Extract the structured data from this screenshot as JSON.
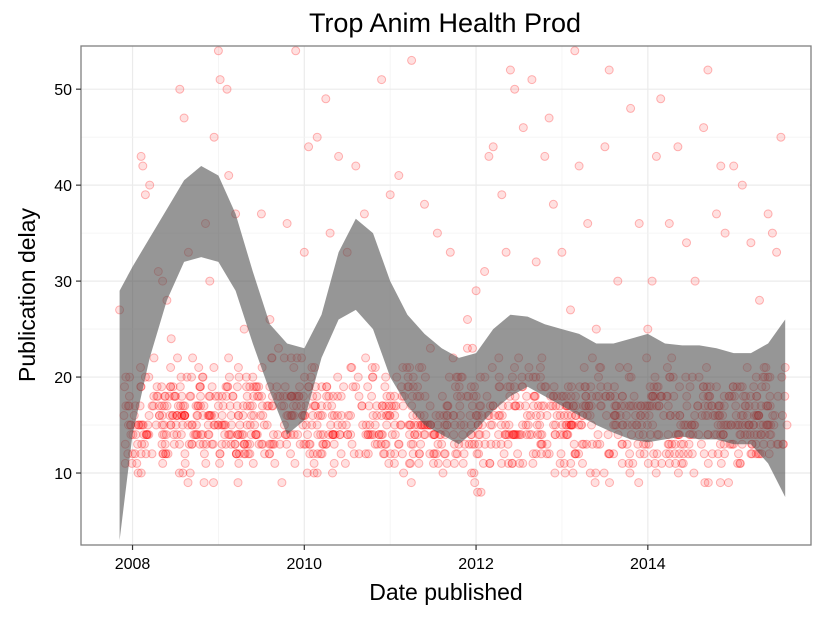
{
  "chart_data": {
    "type": "scatter",
    "title": "Trop Anim Health Prod",
    "xlabel": "Date published",
    "ylabel": "Publication delay",
    "xlim": [
      2007.4,
      2015.9
    ],
    "ylim": [
      2.5,
      54.5
    ],
    "x_ticks": [
      {
        "value": 2008,
        "label": "2008"
      },
      {
        "value": 2010,
        "label": "2010"
      },
      {
        "value": 2012,
        "label": "2012"
      },
      {
        "value": 2014,
        "label": "2014"
      }
    ],
    "y_ticks": [
      {
        "value": 10,
        "label": "10"
      },
      {
        "value": 20,
        "label": "20"
      },
      {
        "value": 30,
        "label": "30"
      },
      {
        "value": 40,
        "label": "40"
      },
      {
        "value": 50,
        "label": "50"
      }
    ],
    "grid": true,
    "point_color": "#ff0000",
    "band_color": "#555555",
    "points_sampled": [
      [
        2007.85,
        27
      ],
      [
        2007.9,
        16
      ],
      [
        2007.95,
        17
      ],
      [
        2008.0,
        12
      ],
      [
        2008.05,
        11
      ],
      [
        2008.1,
        43
      ],
      [
        2008.12,
        42
      ],
      [
        2008.15,
        39
      ],
      [
        2008.2,
        40
      ],
      [
        2008.25,
        22
      ],
      [
        2008.3,
        31
      ],
      [
        2008.35,
        30
      ],
      [
        2008.4,
        28
      ],
      [
        2008.45,
        24
      ],
      [
        2008.5,
        18
      ],
      [
        2008.55,
        50
      ],
      [
        2008.6,
        47
      ],
      [
        2008.65,
        33
      ],
      [
        2008.7,
        22
      ],
      [
        2008.75,
        16
      ],
      [
        2008.85,
        36
      ],
      [
        2008.9,
        30
      ],
      [
        2008.95,
        45
      ],
      [
        2009.0,
        54
      ],
      [
        2009.02,
        51
      ],
      [
        2009.1,
        50
      ],
      [
        2009.12,
        41
      ],
      [
        2009.2,
        37
      ],
      [
        2009.3,
        25
      ],
      [
        2009.4,
        20
      ],
      [
        2009.5,
        37
      ],
      [
        2009.6,
        26
      ],
      [
        2009.7,
        23
      ],
      [
        2009.8,
        36
      ],
      [
        2009.9,
        54
      ],
      [
        2010.0,
        33
      ],
      [
        2010.05,
        44
      ],
      [
        2010.15,
        45
      ],
      [
        2010.25,
        49
      ],
      [
        2010.3,
        35
      ],
      [
        2010.4,
        43
      ],
      [
        2010.5,
        33
      ],
      [
        2010.6,
        42
      ],
      [
        2010.7,
        37
      ],
      [
        2010.9,
        51
      ],
      [
        2011.0,
        39
      ],
      [
        2011.1,
        41
      ],
      [
        2011.25,
        53
      ],
      [
        2011.4,
        38
      ],
      [
        2011.55,
        35
      ],
      [
        2011.7,
        33
      ],
      [
        2011.9,
        26
      ],
      [
        2012.0,
        29
      ],
      [
        2012.1,
        31
      ],
      [
        2012.15,
        43
      ],
      [
        2012.2,
        44
      ],
      [
        2012.3,
        39
      ],
      [
        2012.35,
        33
      ],
      [
        2012.4,
        52
      ],
      [
        2012.45,
        50
      ],
      [
        2012.55,
        46
      ],
      [
        2012.65,
        51
      ],
      [
        2012.7,
        32
      ],
      [
        2012.8,
        43
      ],
      [
        2012.85,
        47
      ],
      [
        2012.9,
        38
      ],
      [
        2013.0,
        33
      ],
      [
        2013.1,
        27
      ],
      [
        2013.15,
        54
      ],
      [
        2013.2,
        42
      ],
      [
        2013.3,
        36
      ],
      [
        2013.4,
        25
      ],
      [
        2013.5,
        44
      ],
      [
        2013.55,
        52
      ],
      [
        2013.65,
        30
      ],
      [
        2013.8,
        48
      ],
      [
        2013.9,
        36
      ],
      [
        2014.0,
        25
      ],
      [
        2014.05,
        30
      ],
      [
        2014.1,
        43
      ],
      [
        2014.15,
        49
      ],
      [
        2014.25,
        36
      ],
      [
        2014.35,
        44
      ],
      [
        2014.45,
        34
      ],
      [
        2014.55,
        30
      ],
      [
        2014.65,
        46
      ],
      [
        2014.7,
        52
      ],
      [
        2014.8,
        37
      ],
      [
        2014.85,
        42
      ],
      [
        2014.9,
        35
      ],
      [
        2015.0,
        42
      ],
      [
        2015.1,
        40
      ],
      [
        2015.2,
        34
      ],
      [
        2015.3,
        28
      ],
      [
        2015.4,
        37
      ],
      [
        2015.45,
        35
      ],
      [
        2015.5,
        33
      ],
      [
        2015.55,
        45
      ],
      [
        2015.6,
        21
      ],
      [
        2015.62,
        15
      ]
    ],
    "cluster": {
      "x_range": [
        2007.9,
        2015.6
      ],
      "y_range": [
        7,
        24
      ],
      "count": 1200
    },
    "band": {
      "x": [
        2007.85,
        2008.0,
        2008.2,
        2008.4,
        2008.6,
        2008.8,
        2009.0,
        2009.2,
        2009.4,
        2009.6,
        2009.8,
        2010.0,
        2010.2,
        2010.4,
        2010.6,
        2010.8,
        2011.0,
        2011.2,
        2011.4,
        2011.6,
        2011.8,
        2012.0,
        2012.2,
        2012.4,
        2012.6,
        2012.8,
        2013.0,
        2013.2,
        2013.4,
        2013.6,
        2013.8,
        2014.0,
        2014.2,
        2014.4,
        2014.6,
        2014.8,
        2015.0,
        2015.2,
        2015.4,
        2015.6
      ],
      "upper": [
        29,
        31.5,
        34.5,
        37.5,
        40.5,
        42,
        41,
        37,
        31,
        25.5,
        23.5,
        23,
        26.5,
        33,
        36.5,
        35,
        30,
        26.5,
        24.5,
        23,
        22,
        22.5,
        25,
        26.5,
        26.3,
        25.5,
        25,
        24.5,
        23.5,
        23.5,
        24,
        24.5,
        23.5,
        23.3,
        23.3,
        23,
        22.5,
        22.5,
        23.5,
        26
      ],
      "lower": [
        3,
        14,
        22,
        28,
        32,
        32.5,
        32,
        29,
        23.5,
        18.5,
        14,
        15.5,
        22,
        26,
        27,
        25,
        20,
        17,
        15,
        14,
        13,
        14.5,
        16.5,
        18,
        19,
        18,
        17,
        16,
        15,
        14.2,
        13.5,
        13.2,
        13.5,
        13.8,
        13.5,
        13.5,
        13,
        13,
        11,
        7.5
      ]
    }
  }
}
